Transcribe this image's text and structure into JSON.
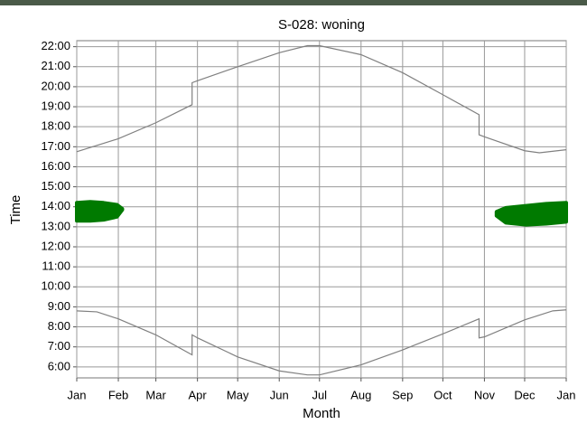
{
  "chart_data": {
    "type": "line",
    "title": "S-028: woning",
    "x_label": "Month",
    "y_label": "Time",
    "xlim": [
      0,
      365
    ],
    "ylim": [
      5.45,
      22.3
    ],
    "xticks": [
      {
        "value": 0,
        "label": "Jan"
      },
      {
        "value": 31,
        "label": "Feb"
      },
      {
        "value": 59,
        "label": "Mar"
      },
      {
        "value": 90,
        "label": "Apr"
      },
      {
        "value": 120,
        "label": "May"
      },
      {
        "value": 151,
        "label": "Jun"
      },
      {
        "value": 181,
        "label": "Jul"
      },
      {
        "value": 212,
        "label": "Aug"
      },
      {
        "value": 243,
        "label": "Sep"
      },
      {
        "value": 273,
        "label": "Oct"
      },
      {
        "value": 304,
        "label": "Nov"
      },
      {
        "value": 334,
        "label": "Dec"
      },
      {
        "value": 365,
        "label": "Jan"
      }
    ],
    "yticks": [
      {
        "value": 6,
        "label": "6:00"
      },
      {
        "value": 7,
        "label": "7:00"
      },
      {
        "value": 8,
        "label": "8:00"
      },
      {
        "value": 9,
        "label": "9:00"
      },
      {
        "value": 10,
        "label": "10:00"
      },
      {
        "value": 11,
        "label": "11:00"
      },
      {
        "value": 12,
        "label": "12:00"
      },
      {
        "value": 13,
        "label": "13:00"
      },
      {
        "value": 14,
        "label": "14:00"
      },
      {
        "value": 15,
        "label": "15:00"
      },
      {
        "value": 16,
        "label": "16:00"
      },
      {
        "value": 17,
        "label": "17:00"
      },
      {
        "value": 18,
        "label": "18:00"
      },
      {
        "value": 19,
        "label": "19:00"
      },
      {
        "value": 20,
        "label": "20:00"
      },
      {
        "value": 21,
        "label": "21:00"
      },
      {
        "value": 22,
        "label": "22:00"
      }
    ],
    "grid": true,
    "series": [
      {
        "color": "#808080",
        "x": [
          0,
          31,
          59,
          86,
          86,
          90,
          120,
          151,
          172,
          181,
          212,
          243,
          273,
          300,
          300,
          304,
          334,
          345,
          365
        ],
        "values": [
          16.75,
          17.4,
          18.2,
          19.1,
          20.2,
          20.3,
          21.0,
          21.7,
          22.05,
          22.05,
          21.6,
          20.7,
          19.6,
          18.6,
          17.6,
          17.5,
          16.8,
          16.7,
          16.85
        ]
      },
      {
        "color": "#808080",
        "x": [
          0,
          15,
          31,
          59,
          86,
          86,
          90,
          120,
          151,
          172,
          181,
          212,
          243,
          273,
          300,
          300,
          304,
          334,
          355,
          365
        ],
        "values": [
          8.8,
          8.75,
          8.4,
          7.6,
          6.6,
          7.6,
          7.45,
          6.5,
          5.8,
          5.6,
          5.6,
          6.1,
          6.85,
          7.65,
          8.4,
          7.45,
          7.5,
          8.35,
          8.8,
          8.85
        ]
      }
    ],
    "areas": [
      {
        "color": "#007a00",
        "x": [
          0,
          10,
          20,
          30,
          34
        ],
        "high": [
          14.2,
          14.25,
          14.2,
          14.1,
          13.9
        ],
        "low": [
          13.3,
          13.3,
          13.35,
          13.5,
          13.85
        ]
      },
      {
        "color": "#007a00",
        "x": [
          313,
          320,
          335,
          350,
          365
        ],
        "high": [
          13.75,
          13.95,
          14.05,
          14.15,
          14.2
        ],
        "low": [
          13.55,
          13.2,
          13.1,
          13.15,
          13.25
        ]
      }
    ]
  }
}
